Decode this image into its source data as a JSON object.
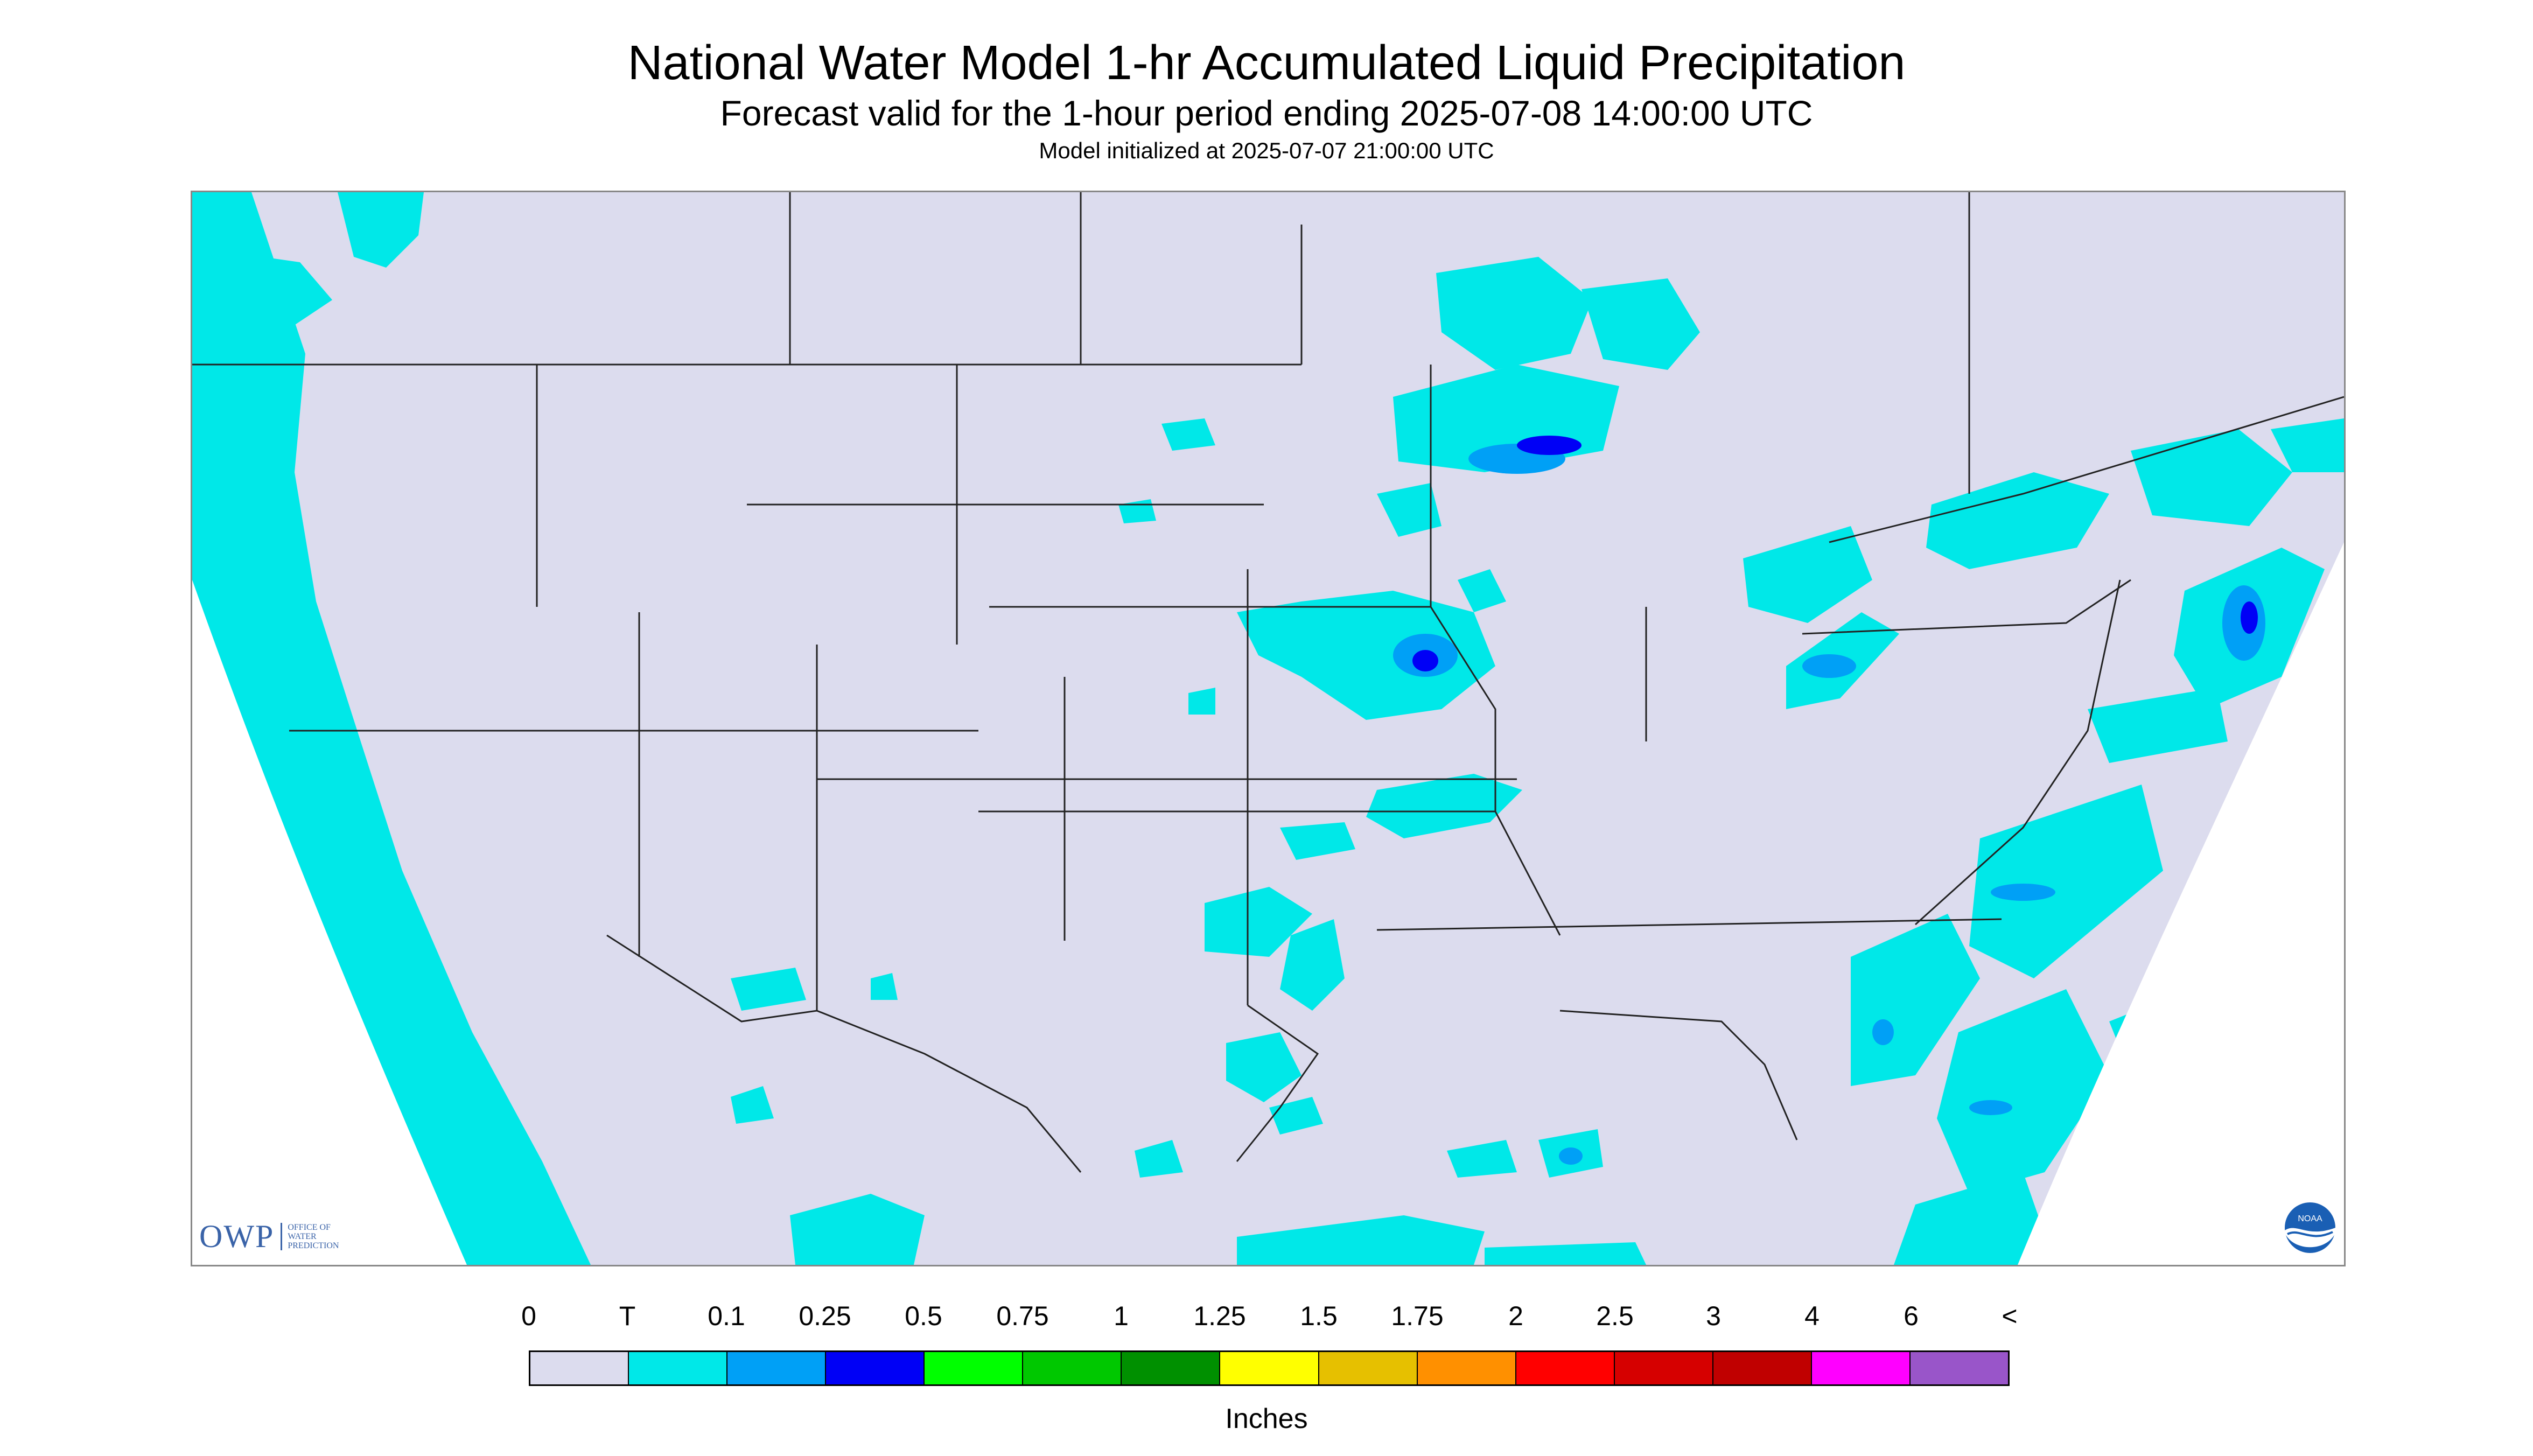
{
  "title": "National Water Model 1-hr Accumulated Liquid Precipitation",
  "subtitle": "Forecast valid for the 1-hour period ending 2025-07-08 14:00:00 UTC",
  "init_line": "Model initialized at 2025-07-07 21:00:00 UTC",
  "legend": {
    "labels": [
      "0",
      "T",
      "0.1",
      "0.25",
      "0.5",
      "0.75",
      "1",
      "1.25",
      "1.5",
      "1.75",
      "2",
      "2.5",
      "3",
      "4",
      "6",
      "<"
    ],
    "colors": [
      "#dcdcee",
      "#00e8e8",
      "#00a0f6",
      "#0000f6",
      "#00ff00",
      "#00c800",
      "#009000",
      "#ffff00",
      "#e6c000",
      "#ff9000",
      "#ff0000",
      "#d60000",
      "#c00000",
      "#ff00ff",
      "#9955c9"
    ],
    "units": "Inches"
  },
  "logos": {
    "owp_mark": "OWP",
    "owp_text": [
      "OFFICE OF",
      "WATER",
      "PREDICTION"
    ],
    "noaa_text": "NOAA"
  },
  "map_colors": {
    "background": "#dcdcee",
    "trace": "#00e8e8",
    "light": "#00a0f6",
    "moderate": "#0000f6",
    "border": "#222222"
  }
}
